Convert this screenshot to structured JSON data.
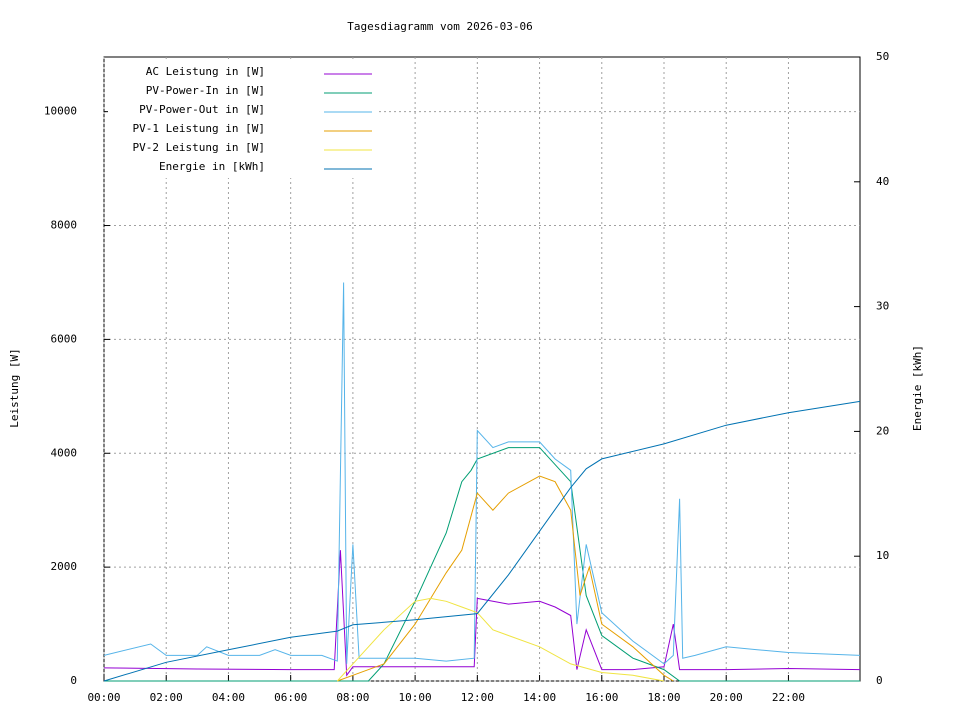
{
  "chart_data": {
    "type": "line",
    "title": "Tagesdiagramm vom 2026-03-06",
    "y_label": "Leistung [W]",
    "y2_label": "Energie [kWh]",
    "xlim": [
      0,
      24.3
    ],
    "ylim": [
      0,
      10960
    ],
    "y2lim": [
      0,
      50
    ],
    "xticks": [
      {
        "value": 0,
        "label": "00:00"
      },
      {
        "value": 2,
        "label": "02:00"
      },
      {
        "value": 4,
        "label": "04:00"
      },
      {
        "value": 6,
        "label": "06:00"
      },
      {
        "value": 8,
        "label": "08:00"
      },
      {
        "value": 10,
        "label": "10:00"
      },
      {
        "value": 12,
        "label": "12:00"
      },
      {
        "value": 14,
        "label": "14:00"
      },
      {
        "value": 16,
        "label": "16:00"
      },
      {
        "value": 18,
        "label": "18:00"
      },
      {
        "value": 20,
        "label": "20:00"
      },
      {
        "value": 22,
        "label": "22:00"
      }
    ],
    "yticks": [
      0,
      2000,
      4000,
      6000,
      8000,
      10000
    ],
    "y2ticks": [
      0,
      10,
      20,
      30,
      40,
      50
    ],
    "grid": true,
    "series": [
      {
        "name": "AC Leistung in [W]",
        "color": "#9400d3",
        "x": [
          0,
          3,
          6,
          7.4,
          7.6,
          7.8,
          8,
          10,
          11.9,
          12,
          13,
          14,
          14.5,
          15,
          15.2,
          15.5,
          16,
          17,
          18,
          18.3,
          18.5,
          20,
          22,
          24.3
        ],
        "values": [
          230,
          210,
          200,
          200,
          2300,
          100,
          250,
          250,
          250,
          1450,
          1350,
          1400,
          1300,
          1150,
          200,
          900,
          200,
          200,
          250,
          1000,
          200,
          200,
          220,
          200
        ]
      },
      {
        "name": "PV-Power-In in [W]",
        "color": "#009e73",
        "x": [
          0,
          8.5,
          9,
          10,
          11,
          11.5,
          11.8,
          12,
          13,
          14,
          15,
          15.5,
          16,
          17,
          18,
          18.5,
          24.3
        ],
        "values": [
          0,
          0,
          300,
          1400,
          2600,
          3500,
          3700,
          3900,
          4100,
          4100,
          3500,
          1500,
          800,
          400,
          200,
          0,
          0
        ]
      },
      {
        "name": "PV-Power-Out in [W]",
        "color": "#56b4e9",
        "x": [
          0,
          1.5,
          2,
          3,
          3.3,
          4,
          5,
          5.5,
          6,
          7,
          7.5,
          7.7,
          7.8,
          8,
          8.2,
          9,
          10,
          11,
          11.9,
          12,
          12.5,
          13,
          14,
          14.5,
          15,
          15.2,
          15.5,
          16,
          17,
          18,
          18.3,
          18.5,
          18.6,
          19,
          20,
          21,
          22,
          24.3
        ],
        "values": [
          450,
          650,
          450,
          450,
          600,
          450,
          450,
          550,
          450,
          450,
          350,
          7000,
          300,
          2400,
          400,
          400,
          400,
          350,
          400,
          4400,
          4100,
          4200,
          4200,
          3900,
          3700,
          1000,
          2400,
          1200,
          700,
          300,
          450,
          3200,
          400,
          450,
          600,
          550,
          500,
          450
        ]
      },
      {
        "name": "PV-1 Leistung in [W]",
        "color": "#e69f00",
        "x": [
          7.5,
          8,
          9,
          10,
          11,
          11.5,
          12,
          12.5,
          13,
          14,
          14.5,
          15,
          15.3,
          15.6,
          16,
          17,
          18,
          18.3
        ],
        "values": [
          0,
          100,
          300,
          1000,
          1900,
          2300,
          3300,
          3000,
          3300,
          3600,
          3500,
          3000,
          1500,
          2000,
          1000,
          600,
          100,
          0
        ]
      },
      {
        "name": "PV-2 Leistung in [W]",
        "color": "#f0e442",
        "x": [
          7.5,
          8,
          9,
          10,
          10.5,
          11,
          11.5,
          12,
          12.5,
          13,
          14,
          15,
          16,
          17,
          18
        ],
        "values": [
          0,
          300,
          900,
          1400,
          1450,
          1400,
          1300,
          1200,
          900,
          800,
          600,
          300,
          150,
          100,
          0
        ]
      },
      {
        "name": "Energie in [kWh]",
        "color": "#0072b2",
        "axis": "y2",
        "x": [
          0,
          2,
          4,
          6,
          7.5,
          8,
          10,
          12,
          13,
          14,
          15,
          15.5,
          16,
          18,
          20,
          22,
          24.3
        ],
        "values": [
          0,
          1.5,
          2.5,
          3.5,
          4,
          4.5,
          4.9,
          5.4,
          8.5,
          12,
          15.5,
          17,
          17.8,
          19,
          20.5,
          21.5,
          22.4
        ]
      }
    ]
  }
}
